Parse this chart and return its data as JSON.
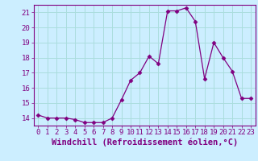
{
  "x": [
    0,
    1,
    2,
    3,
    4,
    5,
    6,
    7,
    8,
    9,
    10,
    11,
    12,
    13,
    14,
    15,
    16,
    17,
    18,
    19,
    20,
    21,
    22,
    23
  ],
  "y": [
    14.2,
    14.0,
    14.0,
    14.0,
    13.9,
    13.7,
    13.7,
    13.7,
    14.0,
    15.2,
    16.5,
    17.0,
    18.1,
    17.6,
    21.1,
    21.1,
    21.3,
    20.4,
    16.6,
    19.0,
    18.0,
    17.1,
    15.3,
    15.3
  ],
  "line_color": "#800080",
  "marker": "D",
  "marker_size": 2.5,
  "bg_color": "#cceeff",
  "grid_color": "#aadddd",
  "xlabel": "Windchill (Refroidissement éolien,°C)",
  "xlabel_color": "#800080",
  "ylim": [
    13.5,
    21.5
  ],
  "xlim": [
    -0.5,
    23.5
  ],
  "yticks": [
    14,
    15,
    16,
    17,
    18,
    19,
    20,
    21
  ],
  "xticks": [
    0,
    1,
    2,
    3,
    4,
    5,
    6,
    7,
    8,
    9,
    10,
    11,
    12,
    13,
    14,
    15,
    16,
    17,
    18,
    19,
    20,
    21,
    22,
    23
  ],
  "tick_color": "#800080",
  "tick_label_fontsize": 6.5,
  "xlabel_fontsize": 7.5
}
